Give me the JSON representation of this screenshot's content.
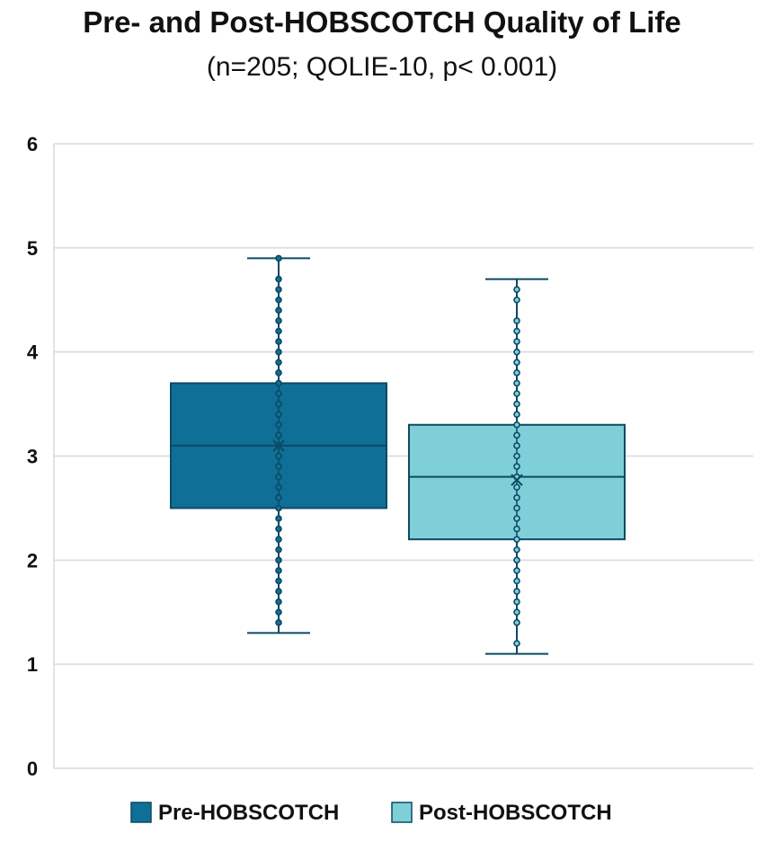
{
  "chart_data": {
    "type": "box",
    "title": "Pre- and Post-HOBSCOTCH Quality of Life",
    "subtitle": "(n=205; QOLIE-10, p< 0.001)",
    "ylim": [
      0,
      6
    ],
    "yticks": [
      0,
      1,
      2,
      3,
      4,
      5,
      6
    ],
    "grid": true,
    "legend_position": "bottom",
    "series": [
      {
        "name": "Pre-HOBSCOTCH",
        "color": "#0f6f97",
        "min": 1.3,
        "q1": 2.5,
        "median": 3.1,
        "mean": 3.1,
        "q3": 3.7,
        "max": 4.9,
        "points": [
          1.4,
          1.5,
          1.6,
          1.7,
          1.8,
          1.9,
          2.0,
          2.1,
          2.2,
          2.3,
          2.4,
          2.5,
          2.6,
          2.7,
          2.8,
          2.9,
          3.0,
          3.1,
          3.2,
          3.3,
          3.4,
          3.5,
          3.6,
          3.7,
          3.8,
          3.9,
          4.0,
          4.1,
          4.2,
          4.3,
          4.4,
          4.5,
          4.6,
          4.7,
          4.9
        ]
      },
      {
        "name": "Post-HOBSCOTCH",
        "color": "#7fcfd9",
        "min": 1.1,
        "q1": 2.2,
        "median": 2.8,
        "mean": 2.77,
        "q3": 3.3,
        "max": 4.7,
        "points": [
          1.2,
          1.4,
          1.5,
          1.6,
          1.7,
          1.8,
          1.9,
          2.0,
          2.1,
          2.2,
          2.3,
          2.4,
          2.5,
          2.6,
          2.7,
          2.8,
          2.9,
          3.0,
          3.1,
          3.2,
          3.3,
          3.4,
          3.5,
          3.6,
          3.7,
          3.8,
          3.9,
          4.0,
          4.1,
          4.2,
          4.3,
          4.5,
          4.6
        ]
      }
    ]
  }
}
